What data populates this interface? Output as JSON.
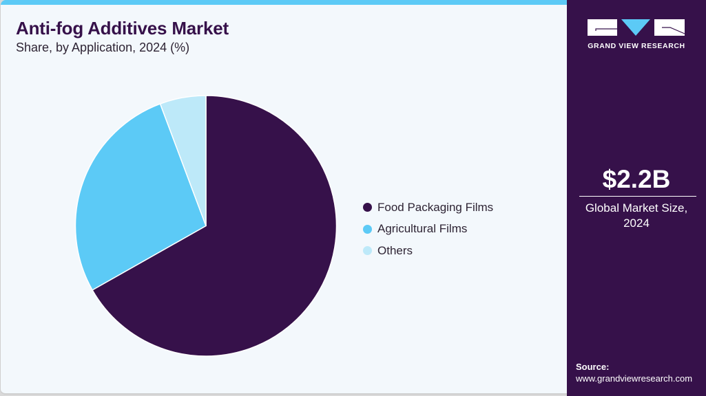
{
  "header": {
    "title": "Anti-fog Additives Market",
    "subtitle": "Share, by Application, 2024 (%)"
  },
  "brand": {
    "name": "GRAND VIEW RESEARCH",
    "colors": {
      "panel": "#36114a",
      "accent": "#5ccaf6",
      "background": "#f3f8fc"
    }
  },
  "summary": {
    "value": "$2.2B",
    "label": "Global Market Size, 2024"
  },
  "source": {
    "label": "Source:",
    "url": "www.grandviewresearch.com"
  },
  "legend": {
    "items": [
      {
        "label": "Food Packaging Films",
        "color": "#36114a"
      },
      {
        "label": "Agricultural Films",
        "color": "#5ccaf6"
      },
      {
        "label": "Others",
        "color": "#bde9f9"
      }
    ]
  },
  "chart_data": {
    "type": "pie",
    "title": "Anti-fog Additives Market",
    "subtitle": "Share, by Application, 2024 (%)",
    "categories": [
      "Food Packaging Films",
      "Agricultural Films",
      "Others"
    ],
    "values": [
      66.8,
      27.5,
      5.7
    ],
    "colors": [
      "#36114a",
      "#5ccaf6",
      "#bde9f9"
    ],
    "start_angle": "12 o'clock, clockwise",
    "legend_position": "right",
    "data_labels": false
  }
}
